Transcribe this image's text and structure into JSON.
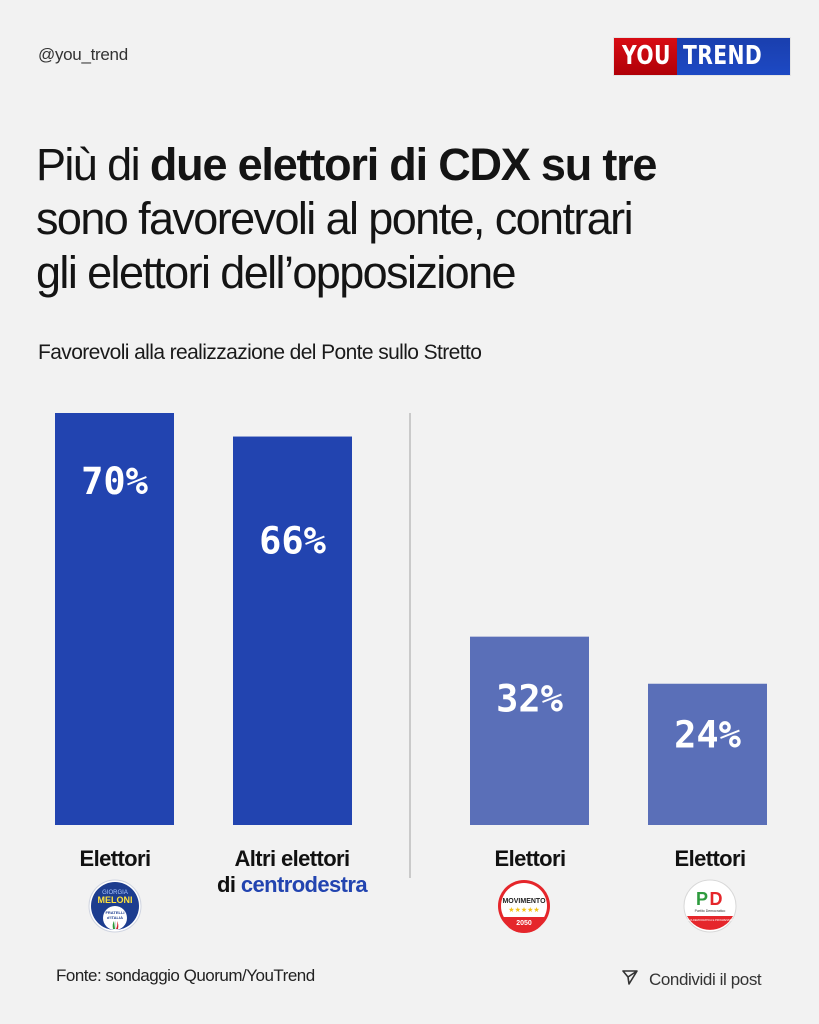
{
  "header": {
    "handle": "@you_trend",
    "logo_left": "YOU",
    "logo_right": "TREND"
  },
  "title": {
    "part1": "Più di ",
    "bold": "due elettori di CDX su tre",
    "line2": "sono favorevoli al ponte, contrari",
    "line3": "gli elettori dell’opposizione"
  },
  "colors": {
    "cdx_bar": "#2244b0",
    "opposition_bar": "#5a6fb8",
    "divider": "#bcbcbc",
    "background": "#f2f2f2",
    "accent_text": "#2244b0"
  },
  "chart_data": {
    "type": "bar",
    "title": "Favorevoli alla realizzazione del Ponte sullo Stretto",
    "xlabel": "",
    "ylabel": "",
    "ylim": [
      0,
      70
    ],
    "grid": false,
    "categories": [
      "Elettori Fratelli d'Italia",
      "Altri elettori di centrodestra",
      "Elettori Movimento 5 Stelle",
      "Elettori Partito Democratico"
    ],
    "values": [
      70,
      66,
      32,
      24
    ],
    "value_labels": [
      "70%",
      "66%",
      "32%",
      "24%"
    ],
    "groups": [
      "centrodestra",
      "centrodestra",
      "opposizione",
      "opposizione"
    ]
  },
  "bars": [
    {
      "label_line1": "Elettori",
      "label_line2": "",
      "label_accent": "",
      "logo": "fratelli-ditalia-logo",
      "logo_text": [
        "GIORGIA",
        "MELONI",
        "FRATELLI",
        "d'ITALIA"
      ]
    },
    {
      "label_line1": "Altri elettori",
      "label_line2": "di ",
      "label_accent": "centrodestra",
      "logo": ""
    },
    {
      "label_line1": "Elettori",
      "label_line2": "",
      "label_accent": "",
      "logo": "movimento-5-stelle-logo",
      "logo_text": [
        "MOVIMENTO",
        "★★★★★",
        "2050"
      ]
    },
    {
      "label_line1": "Elettori",
      "label_line2": "",
      "label_accent": "",
      "logo": "partito-democratico-logo",
      "logo_text": [
        "PD",
        "Partito Democratico",
        "ITALIA DEMOCRATICA E PROGRESSISTA"
      ]
    }
  ],
  "footer": {
    "source": "Fonte: sondaggio Quorum/YouTrend",
    "share_label": "Condividi il post",
    "share_icon": "send-icon"
  }
}
